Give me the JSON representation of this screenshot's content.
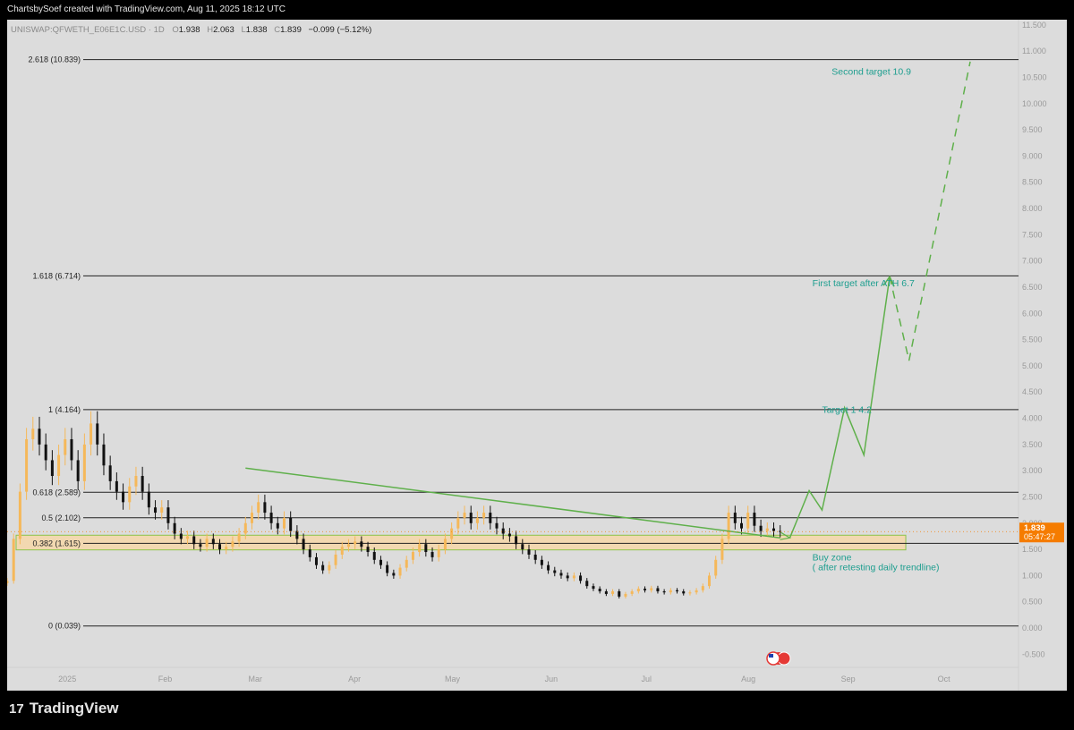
{
  "header": {
    "credit": "ChartsbySoef created with TradingView.com, Aug 11, 2025 18:12 UTC"
  },
  "symbol_line": {
    "symbol": "UNISWAP:QFWETH_E06E1C.USD · 1D",
    "o_label": "O",
    "o_value": "1.938",
    "h_label": "H",
    "h_value": "2.063",
    "l_label": "L",
    "l_value": "1.838",
    "c_label": "C",
    "c_value": "1.839",
    "change": "−0.099 (−5.12%)"
  },
  "price_badge": {
    "price": "1.839",
    "countdown": "05:47:27"
  },
  "footer": {
    "brand": "TradingView",
    "mark": "17"
  },
  "colors": {
    "background": "#dcdcdc",
    "candle_up": "#f5b85a",
    "candle_down": "#111111",
    "fib_line": "#222222",
    "trendline": "#5fb04b",
    "text_teal": "#1e9e8f",
    "zone_fill": "#f6d7a8",
    "zone_border": "#8bc34a",
    "badge": "#f57c00"
  },
  "chart_data": {
    "type": "candlestick",
    "x_ticks": [
      "2025",
      "Feb",
      "Mar",
      "Apr",
      "May",
      "Jun",
      "Jul",
      "Aug",
      "Sep",
      "Oct"
    ],
    "x_tick_days": [
      0,
      31,
      59,
      90,
      120,
      151,
      181,
      212,
      243,
      273
    ],
    "x_range_days": [
      -17,
      297
    ],
    "y_ticks": [
      "11.500",
      "11.000",
      "10.500",
      "10.000",
      "9.500",
      "9.000",
      "8.500",
      "8.000",
      "7.500",
      "7.000",
      "6.500",
      "6.000",
      "5.500",
      "5.000",
      "4.500",
      "4.000",
      "3.500",
      "3.000",
      "2.500",
      "2.000",
      "1.500",
      "1.000",
      "0.500",
      "0.000",
      "-0.500"
    ],
    "y_range": [
      -0.75,
      11.6
    ],
    "close_series": [
      [
        -17,
        0.9
      ],
      [
        -15,
        1.7
      ],
      [
        -13,
        2.6
      ],
      [
        -11,
        3.6
      ],
      [
        -9,
        3.8
      ],
      [
        -7,
        3.5
      ],
      [
        -5,
        3.2
      ],
      [
        -3,
        2.9
      ],
      [
        -1,
        3.3
      ],
      [
        1,
        3.6
      ],
      [
        3,
        3.2
      ],
      [
        5,
        2.8
      ],
      [
        7,
        3.5
      ],
      [
        9,
        3.9
      ],
      [
        11,
        3.5
      ],
      [
        13,
        3.1
      ],
      [
        15,
        2.8
      ],
      [
        17,
        2.6
      ],
      [
        19,
        2.4
      ],
      [
        21,
        2.7
      ],
      [
        23,
        2.9
      ],
      [
        25,
        2.6
      ],
      [
        27,
        2.3
      ],
      [
        29,
        2.2
      ],
      [
        31,
        2.3
      ],
      [
        33,
        2.0
      ],
      [
        35,
        1.8
      ],
      [
        37,
        1.7
      ],
      [
        39,
        1.75
      ],
      [
        41,
        1.6
      ],
      [
        43,
        1.55
      ],
      [
        45,
        1.7
      ],
      [
        47,
        1.6
      ],
      [
        49,
        1.5
      ],
      [
        51,
        1.55
      ],
      [
        53,
        1.65
      ],
      [
        55,
        1.8
      ],
      [
        57,
        2.0
      ],
      [
        59,
        2.2
      ],
      [
        61,
        2.4
      ],
      [
        63,
        2.2
      ],
      [
        65,
        2.0
      ],
      [
        67,
        1.9
      ],
      [
        69,
        2.1
      ],
      [
        71,
        1.85
      ],
      [
        73,
        1.7
      ],
      [
        75,
        1.5
      ],
      [
        77,
        1.35
      ],
      [
        79,
        1.2
      ],
      [
        81,
        1.1
      ],
      [
        83,
        1.2
      ],
      [
        85,
        1.4
      ],
      [
        87,
        1.55
      ],
      [
        89,
        1.6
      ],
      [
        91,
        1.65
      ],
      [
        93,
        1.55
      ],
      [
        95,
        1.45
      ],
      [
        97,
        1.3
      ],
      [
        99,
        1.2
      ],
      [
        101,
        1.05
      ],
      [
        103,
        1.0
      ],
      [
        105,
        1.15
      ],
      [
        107,
        1.3
      ],
      [
        109,
        1.45
      ],
      [
        111,
        1.6
      ],
      [
        113,
        1.45
      ],
      [
        115,
        1.35
      ],
      [
        117,
        1.5
      ],
      [
        119,
        1.7
      ],
      [
        121,
        1.9
      ],
      [
        123,
        2.1
      ],
      [
        125,
        2.2
      ],
      [
        127,
        2.0
      ],
      [
        129,
        2.1
      ],
      [
        131,
        2.2
      ],
      [
        133,
        2.0
      ],
      [
        135,
        1.9
      ],
      [
        137,
        1.8
      ],
      [
        139,
        1.75
      ],
      [
        141,
        1.6
      ],
      [
        143,
        1.5
      ],
      [
        145,
        1.4
      ],
      [
        147,
        1.3
      ],
      [
        149,
        1.2
      ],
      [
        151,
        1.1
      ],
      [
        153,
        1.05
      ],
      [
        155,
        1.0
      ],
      [
        157,
        0.95
      ],
      [
        159,
        1.0
      ],
      [
        161,
        0.9
      ],
      [
        163,
        0.8
      ],
      [
        165,
        0.75
      ],
      [
        167,
        0.7
      ],
      [
        169,
        0.65
      ],
      [
        171,
        0.7
      ],
      [
        173,
        0.6
      ],
      [
        175,
        0.65
      ],
      [
        177,
        0.7
      ],
      [
        179,
        0.75
      ],
      [
        181,
        0.72
      ],
      [
        183,
        0.76
      ],
      [
        185,
        0.7
      ],
      [
        187,
        0.68
      ],
      [
        189,
        0.72
      ],
      [
        191,
        0.7
      ],
      [
        193,
        0.66
      ],
      [
        195,
        0.68
      ],
      [
        197,
        0.72
      ],
      [
        199,
        0.8
      ],
      [
        201,
        1.0
      ],
      [
        203,
        1.3
      ],
      [
        205,
        1.7
      ],
      [
        207,
        2.2
      ],
      [
        209,
        2.0
      ],
      [
        211,
        1.9
      ],
      [
        213,
        2.2
      ],
      [
        215,
        1.95
      ],
      [
        217,
        1.85
      ],
      [
        219,
        1.9
      ],
      [
        221,
        1.85
      ],
      [
        223,
        1.839
      ]
    ],
    "fib_levels": [
      {
        "label": "0 (0.039)",
        "value": 0.039
      },
      {
        "label": "0.382 (1.615)",
        "value": 1.615
      },
      {
        "label": "0.5 (2.102)",
        "value": 2.102
      },
      {
        "label": "0.618 (2.589)",
        "value": 2.589
      },
      {
        "label": "1 (4.164)",
        "value": 4.164
      },
      {
        "label": "1.618 (6.714)",
        "value": 6.714
      },
      {
        "label": "2.618 (10.839)",
        "value": 10.839
      }
    ],
    "trendline": [
      [
        57,
        3.05
      ],
      [
        223,
        1.72
      ]
    ],
    "buy_zone": {
      "x_start": -17,
      "x_end": 262,
      "y_low": 1.49,
      "y_high": 1.77
    },
    "projection_solid": [
      [
        226,
        1.72
      ],
      [
        232,
        2.62
      ],
      [
        236,
        2.25
      ],
      [
        243,
        4.2
      ],
      [
        249,
        3.3
      ],
      [
        257,
        6.7
      ]
    ],
    "projection_dashed": [
      [
        257,
        6.7
      ],
      [
        263,
        5.1
      ],
      [
        282,
        10.8
      ]
    ],
    "annotations": [
      {
        "text": "Second target 10.9",
        "x": 239,
        "y": 10.55
      },
      {
        "text": "First target after ATH 6.7",
        "x": 233,
        "y": 6.52
      },
      {
        "text": "Target 1  4.2",
        "x": 236,
        "y": 4.1
      },
      {
        "text": "Buy zone",
        "x": 233,
        "y": 1.29
      },
      {
        "text": "( after retesting daily trendline)",
        "x": 233,
        "y": 1.1
      }
    ],
    "last_price": 1.839
  }
}
